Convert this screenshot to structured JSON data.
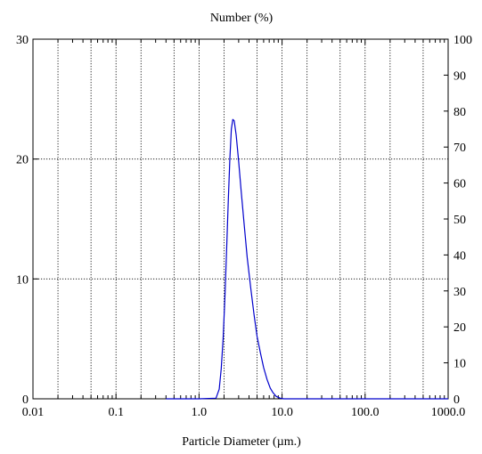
{
  "chart_data": {
    "type": "line",
    "title": "Number (%)",
    "xlabel": "Particle Diameter (µm.)",
    "ylabel": "",
    "x_scale": "log",
    "xlim": [
      0.01,
      1000
    ],
    "ylim": [
      0,
      30
    ],
    "ylim_right": [
      0,
      100
    ],
    "grid": true,
    "x_tick_labels": [
      "0.01",
      "0.1",
      "1.0",
      "10.0",
      "100.0",
      "1000.0"
    ],
    "x_tick_values": [
      0.01,
      0.1,
      1,
      10,
      100,
      1000
    ],
    "y_left_ticks": [
      0,
      10,
      20,
      30
    ],
    "y_right_ticks": [
      0,
      10,
      20,
      30,
      40,
      50,
      60,
      70,
      80,
      90,
      100
    ],
    "series_color": "#0000cc",
    "series": [
      {
        "name": "",
        "x": [
          0.4,
          1.0,
          1.6,
          1.75,
          1.85,
          1.95,
          2.05,
          2.15,
          2.25,
          2.35,
          2.45,
          2.55,
          2.65,
          2.8,
          3.0,
          3.2,
          3.5,
          3.8,
          4.2,
          4.6,
          5.0,
          5.5,
          6.0,
          6.6,
          7.2,
          7.8,
          8.5,
          9.5,
          10.5,
          15,
          100,
          1000
        ],
        "y": [
          0,
          0,
          0.05,
          0.8,
          2.5,
          5.0,
          8.5,
          12.5,
          16.5,
          20.0,
          22.5,
          23.3,
          23.2,
          22.0,
          19.8,
          17.5,
          14.5,
          11.8,
          9.2,
          7.0,
          5.2,
          3.8,
          2.6,
          1.6,
          0.9,
          0.5,
          0.2,
          0.05,
          0,
          0,
          0,
          0
        ]
      }
    ]
  }
}
